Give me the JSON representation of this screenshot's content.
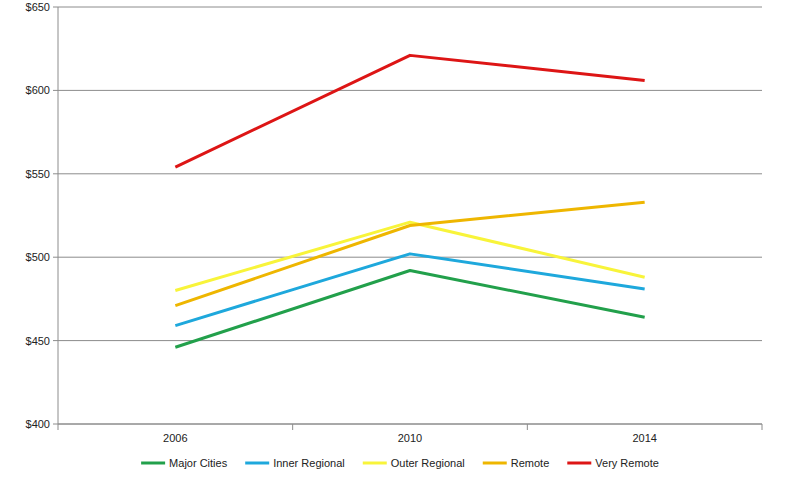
{
  "chart_data": {
    "type": "line",
    "categories": [
      "2006",
      "2010",
      "2014"
    ],
    "series": [
      {
        "name": "Major Cities",
        "color": "#22a04b",
        "values": [
          446,
          492,
          464
        ]
      },
      {
        "name": "Inner Regional",
        "color": "#1ea8dc",
        "values": [
          459,
          502,
          481
        ]
      },
      {
        "name": "Outer Regional",
        "color": "#f8f43a",
        "values": [
          480,
          521,
          488
        ]
      },
      {
        "name": "Remote",
        "color": "#eeb600",
        "values": [
          471,
          519,
          533
        ]
      },
      {
        "name": "Very Remote",
        "color": "#dd1515",
        "values": [
          554,
          621,
          606
        ]
      }
    ],
    "ylim": [
      400,
      650
    ],
    "yticks": [
      {
        "value": 400,
        "label": "$400"
      },
      {
        "value": 450,
        "label": "$450"
      },
      {
        "value": 500,
        "label": "$500"
      },
      {
        "value": 550,
        "label": "$550"
      },
      {
        "value": 600,
        "label": "$600"
      },
      {
        "value": 650,
        "label": "$650"
      }
    ],
    "grid": true,
    "legend": "bottom"
  }
}
